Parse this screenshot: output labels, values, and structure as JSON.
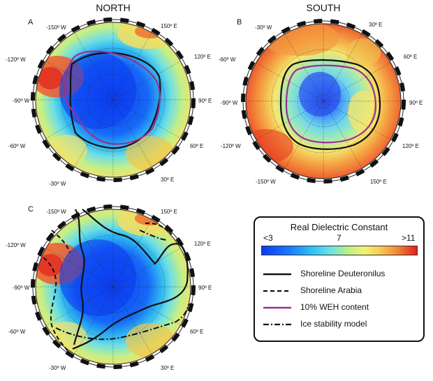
{
  "panels": [
    {
      "id": "north",
      "letter": "A",
      "title": "NORTH",
      "lon_labels": [
        "-150º W",
        "150º E",
        "-120º W",
        "120º E",
        "-90º W",
        "90º E",
        "-60º W",
        "60º E",
        "-30º W",
        "30º E"
      ],
      "overlays": [
        "shoreline-deuteronilus",
        "weh-10pct"
      ]
    },
    {
      "id": "south",
      "letter": "B",
      "title": "SOUTH",
      "lon_labels": [
        "-30º W",
        "30º E",
        "-60º W",
        "60º E",
        "-90º W",
        "90º E",
        "-120º W",
        "120º E",
        "-150º W",
        "150º E"
      ],
      "overlays": [
        "shoreline-deuteronilus",
        "weh-10pct"
      ]
    },
    {
      "id": "north-c",
      "letter": "C",
      "title": "",
      "lon_labels": [
        "-150º W",
        "150º E",
        "-120º W",
        "120º E",
        "-90º W",
        "90º E",
        "-60º W",
        "60º E",
        "-30º W",
        "30º E"
      ],
      "overlays": [
        "shoreline-deuteronilus",
        "shoreline-arabia",
        "ice-stability-model"
      ]
    }
  ],
  "legend": {
    "title": "Real Dielectric Constant",
    "colorbar": {
      "min_label": "<3",
      "mid_label": "7",
      "max_label": ">11",
      "min": 3,
      "mid": 7,
      "max": 11,
      "colors": [
        "#0a3cf0",
        "#1a7bff",
        "#2fc4f3",
        "#6fe0e6",
        "#b8ef8c",
        "#f2f27a",
        "#f5cd56",
        "#f28a3a",
        "#e11f1f"
      ]
    },
    "entries": [
      {
        "label": "Shoreline Deuteronilus",
        "style": "solid",
        "color": "#111111"
      },
      {
        "label": "Shoreline Arabia",
        "style": "dashed",
        "color": "#111111"
      },
      {
        "label": "10% WEH content",
        "style": "solid",
        "color": "#9b2f8f"
      },
      {
        "label": "Ice stability model",
        "style": "dash-dot",
        "color": "#111111"
      }
    ]
  }
}
